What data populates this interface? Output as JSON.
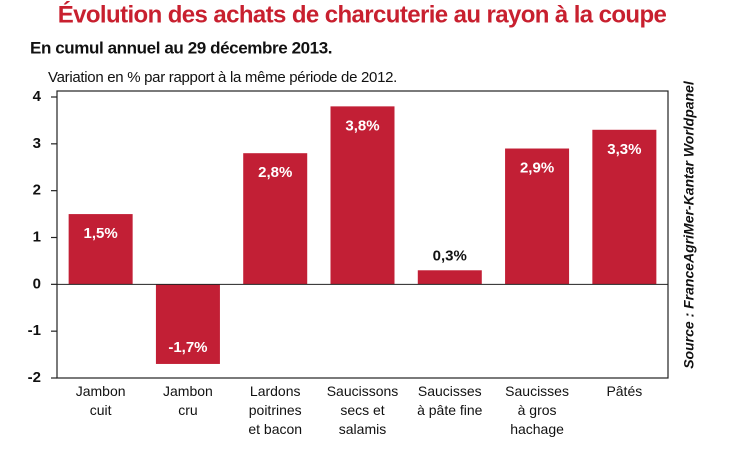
{
  "chart_data": {
    "type": "bar",
    "title": "Évolution des achats de charcuterie au rayon à la coupe",
    "subtitle": "En cumul annuel au 29 décembre 2013.",
    "y_label": "Variation en %  par rapport à la même période de 2012.",
    "source": "Source : FranceAgriMer-Kantar Worldpanel",
    "categories": [
      "Jambon\ncuit",
      "Jambon\ncru",
      "Lardons\npoitrines\net bacon",
      "Saucissons\nsecs et\nsalamis",
      "Saucisses\nà pâte fine",
      "Saucisses\nà gros\nhachage",
      "Pâtés"
    ],
    "values": [
      1.5,
      -1.7,
      2.8,
      3.8,
      0.3,
      2.9,
      3.3
    ],
    "value_labels": [
      "1,5%",
      "-1,7%",
      "2,8%",
      "3,8%",
      "0,3%",
      "2,9%",
      "3,3%"
    ],
    "color": "#c21f35",
    "ylim": [
      -2,
      4
    ],
    "yticks": [
      4,
      3,
      2,
      1,
      0,
      -1,
      -2
    ]
  }
}
